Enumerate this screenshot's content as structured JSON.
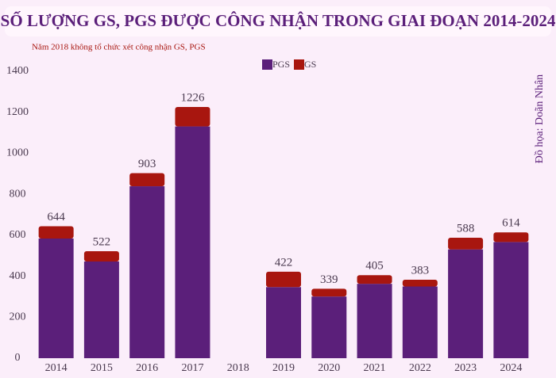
{
  "chart_data": {
    "type": "stacked_bar",
    "title": "SỐ LƯỢNG GS, PGS ĐƯỢC CÔNG NHẬN TRONG GIAI ĐOẠN 2014-2024",
    "subtitle": "Năm 2018 không tổ chức xét công nhận GS, PGS",
    "credit": "Đồ họa: Doãn Nhân",
    "categories": [
      "2014",
      "2015",
      "2016",
      "2017",
      "2018",
      "2019",
      "2020",
      "2021",
      "2022",
      "2023",
      "2024"
    ],
    "series": [
      {
        "name": "PGS",
        "color": "#5b1f7a",
        "values": [
          584,
          472,
          839,
          1131,
          null,
          347,
          301,
          363,
          350,
          531,
          567
        ]
      },
      {
        "name": "GS",
        "color": "#a8160f",
        "values": [
          60,
          50,
          64,
          95,
          null,
          75,
          38,
          42,
          33,
          57,
          47
        ]
      }
    ],
    "totals": [
      644,
      522,
      903,
      1226,
      null,
      422,
      339,
      405,
      383,
      588,
      614
    ],
    "ylim": [
      0,
      1400
    ],
    "yticks": [
      0,
      200,
      400,
      600,
      800,
      1000,
      1200,
      1400
    ],
    "grid": false
  }
}
